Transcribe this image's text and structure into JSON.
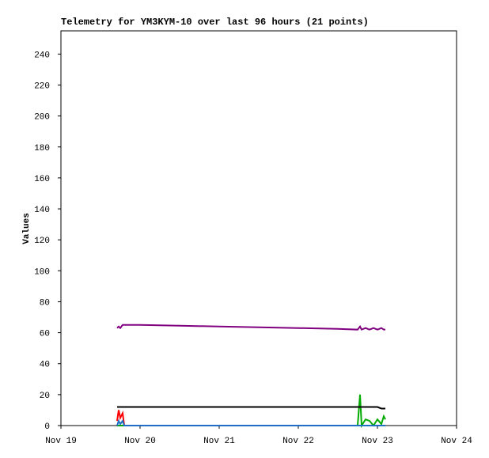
{
  "chart_data": {
    "type": "line",
    "title": "Telemetry for YM3KYM-10 over last 96 hours (21 points)",
    "y_label": "Values",
    "x": [
      0.71,
      0.73,
      0.75,
      0.78,
      0.8,
      1.0,
      1.5,
      2.0,
      2.5,
      3.0,
      3.5,
      3.75,
      3.78,
      3.8,
      3.85,
      3.9,
      3.95,
      4.0,
      4.05,
      4.08,
      4.1
    ],
    "xlim": [
      0,
      5
    ],
    "xticks": [
      {
        "value": 0,
        "label": "Nov 19"
      },
      {
        "value": 1,
        "label": "Nov 20"
      },
      {
        "value": 2,
        "label": "Nov 21"
      },
      {
        "value": 3,
        "label": "Nov 22"
      },
      {
        "value": 4,
        "label": "Nov 23"
      },
      {
        "value": 5,
        "label": "Nov 24"
      }
    ],
    "ylim": [
      0,
      255
    ],
    "yticks": [
      0,
      20,
      40,
      60,
      80,
      100,
      120,
      140,
      160,
      180,
      200,
      220,
      240
    ],
    "series": [
      {
        "color": "#ff0000",
        "values": [
          3,
          10,
          5,
          8,
          0,
          0,
          0,
          0,
          0,
          0,
          0,
          0,
          0,
          0,
          0,
          0,
          0,
          0,
          0,
          0,
          0
        ]
      },
      {
        "color": "#00aa00",
        "values": [
          0,
          0,
          0,
          0,
          0,
          0,
          0,
          0,
          0,
          0,
          0,
          0,
          20,
          0,
          4,
          3,
          0,
          4,
          1,
          6,
          4
        ]
      },
      {
        "color": "#1f6fc4",
        "values": [
          0,
          3,
          1,
          3,
          0,
          0,
          0,
          0,
          0,
          0,
          0,
          0,
          0,
          0,
          0,
          0,
          0,
          0,
          0,
          0,
          0
        ]
      },
      {
        "color": "#000000",
        "values": [
          12,
          12,
          12,
          12,
          12,
          12,
          12,
          12,
          12,
          12,
          12,
          12,
          12,
          12,
          12,
          12,
          12,
          12,
          11,
          11,
          11
        ]
      },
      {
        "color": "#800080",
        "values": [
          63,
          64,
          63,
          65,
          65,
          65,
          64.5,
          64,
          63.5,
          63,
          62.5,
          62,
          64,
          62,
          63,
          62,
          63,
          62,
          63,
          62,
          62
        ]
      }
    ]
  }
}
